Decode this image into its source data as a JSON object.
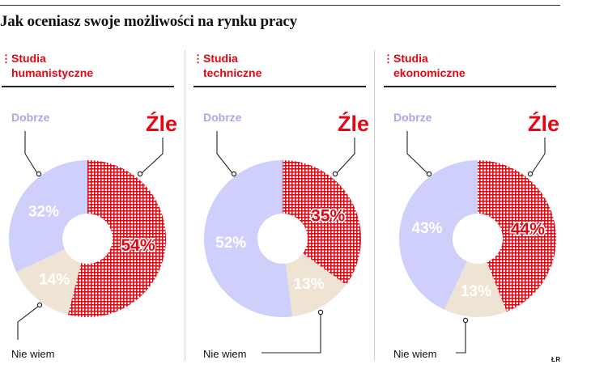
{
  "title": "Jak oceniasz swoje możliwości na rynku pracy",
  "credit": "ŁR",
  "colors": {
    "accent": "#e30613",
    "dobrze": "#cfcffc",
    "nie_wiem": "#efe3d3",
    "zle_hatch": "#e30613",
    "divider": "#222222"
  },
  "legend_labels": {
    "dobrze": "Dobrze",
    "zle": "Źle",
    "nie_wiem": "Nie wiem"
  },
  "chart_data": [
    {
      "type": "pie",
      "title": "Studia humanistyczne",
      "title_lines": [
        "Studia",
        "humanistyczne"
      ],
      "slices": [
        {
          "label": "Źle",
          "value": 54,
          "value_label": "54%"
        },
        {
          "label": "Nie wiem",
          "value": 14,
          "value_label": "14%"
        },
        {
          "label": "Dobrze",
          "value": 32,
          "value_label": "32%"
        }
      ]
    },
    {
      "type": "pie",
      "title": "Studia techniczne",
      "title_lines": [
        "Studia",
        "techniczne"
      ],
      "slices": [
        {
          "label": "Źle",
          "value": 35,
          "value_label": "35%"
        },
        {
          "label": "Nie wiem",
          "value": 13,
          "value_label": "13%"
        },
        {
          "label": "Dobrze",
          "value": 52,
          "value_label": "52%"
        }
      ]
    },
    {
      "type": "pie",
      "title": "Studia ekonomiczne",
      "title_lines": [
        "Studia",
        "ekonomiczne"
      ],
      "slices": [
        {
          "label": "Źle",
          "value": 44,
          "value_label": "44%"
        },
        {
          "label": "Nie wiem",
          "value": 13,
          "value_label": "13%"
        },
        {
          "label": "Dobrze",
          "value": 43,
          "value_label": "43%"
        }
      ]
    }
  ]
}
